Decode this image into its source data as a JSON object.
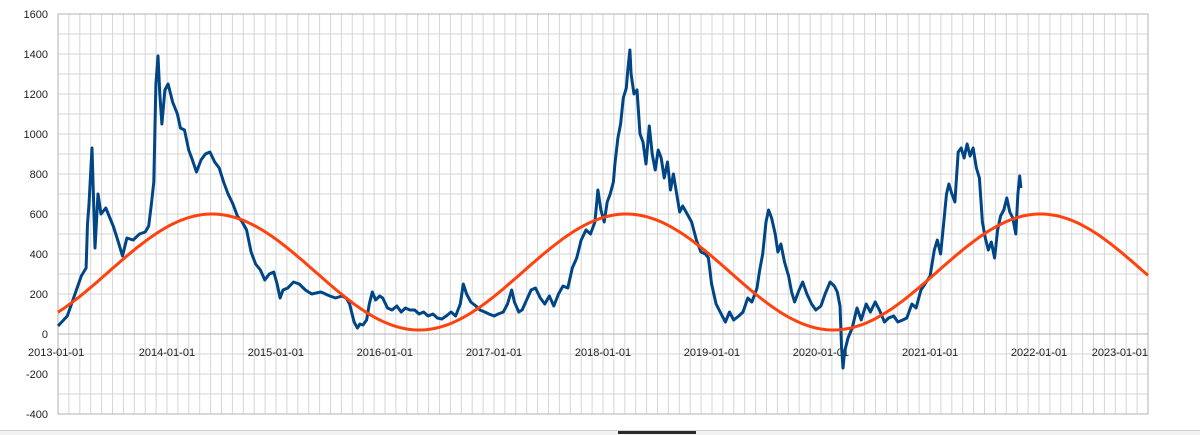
{
  "chart_data": {
    "type": "line",
    "title": "",
    "xlabel": "",
    "ylabel": "",
    "xlim": [
      "2013-01-01",
      "2023-01-01"
    ],
    "ylim": [
      -400,
      1600
    ],
    "x_ticks": [
      "2013-01-01",
      "2014-01-01",
      "2015-01-01",
      "2016-01-01",
      "2017-01-01",
      "2018-01-01",
      "2019-01-01",
      "2020-01-01",
      "2021-01-01",
      "2022-01-01",
      "2023-01-01"
    ],
    "y_ticks": [
      -400,
      -200,
      0,
      200,
      400,
      600,
      800,
      1000,
      1200,
      1400,
      1600
    ],
    "grid": true,
    "legend": "none",
    "series": [
      {
        "color": "#004586",
        "points": [
          [
            "2013-01-01",
            40
          ],
          [
            "2013-02-01",
            90
          ],
          [
            "2013-02-20",
            170
          ],
          [
            "2013-03-20",
            290
          ],
          [
            "2013-04-05",
            330
          ],
          [
            "2013-04-10",
            550
          ],
          [
            "2013-04-15",
            650
          ],
          [
            "2013-04-25",
            930
          ],
          [
            "2013-05-05",
            430
          ],
          [
            "2013-05-15",
            700
          ],
          [
            "2013-05-25",
            600
          ],
          [
            "2013-06-10",
            630
          ],
          [
            "2013-07-05",
            540
          ],
          [
            "2013-07-20",
            470
          ],
          [
            "2013-08-05",
            390
          ],
          [
            "2013-08-20",
            480
          ],
          [
            "2013-09-10",
            470
          ],
          [
            "2013-10-01",
            500
          ],
          [
            "2013-10-20",
            510
          ],
          [
            "2013-11-01",
            540
          ],
          [
            "2013-11-10",
            650
          ],
          [
            "2013-11-18",
            760
          ],
          [
            "2013-11-25",
            1250
          ],
          [
            "2013-12-02",
            1390
          ],
          [
            "2013-12-08",
            1200
          ],
          [
            "2013-12-15",
            1050
          ],
          [
            "2013-12-25",
            1220
          ],
          [
            "2014-01-05",
            1250
          ],
          [
            "2014-01-20",
            1160
          ],
          [
            "2014-02-05",
            1100
          ],
          [
            "2014-02-15",
            1030
          ],
          [
            "2014-03-01",
            1020
          ],
          [
            "2014-03-15",
            920
          ],
          [
            "2014-03-25",
            880
          ],
          [
            "2014-04-10",
            810
          ],
          [
            "2014-04-25",
            870
          ],
          [
            "2014-05-10",
            900
          ],
          [
            "2014-05-25",
            910
          ],
          [
            "2014-06-10",
            860
          ],
          [
            "2014-06-25",
            830
          ],
          [
            "2014-07-10",
            760
          ],
          [
            "2014-07-25",
            700
          ],
          [
            "2014-08-10",
            650
          ],
          [
            "2014-08-25",
            590
          ],
          [
            "2014-09-10",
            560
          ],
          [
            "2014-09-25",
            520
          ],
          [
            "2014-10-10",
            410
          ],
          [
            "2014-10-25",
            350
          ],
          [
            "2014-11-10",
            320
          ],
          [
            "2014-11-25",
            270
          ],
          [
            "2014-12-10",
            300
          ],
          [
            "2014-12-25",
            310
          ],
          [
            "2015-01-05",
            250
          ],
          [
            "2015-01-15",
            180
          ],
          [
            "2015-01-25",
            220
          ],
          [
            "2015-02-10",
            230
          ],
          [
            "2015-03-01",
            260
          ],
          [
            "2015-03-20",
            250
          ],
          [
            "2015-04-10",
            220
          ],
          [
            "2015-05-01",
            200
          ],
          [
            "2015-06-01",
            210
          ],
          [
            "2015-07-01",
            190
          ],
          [
            "2015-07-20",
            180
          ],
          [
            "2015-08-10",
            190
          ],
          [
            "2015-08-25",
            180
          ],
          [
            "2015-09-05",
            150
          ],
          [
            "2015-09-20",
            60
          ],
          [
            "2015-10-01",
            30
          ],
          [
            "2015-10-10",
            50
          ],
          [
            "2015-10-20",
            45
          ],
          [
            "2015-11-01",
            70
          ],
          [
            "2015-11-10",
            150
          ],
          [
            "2015-11-20",
            210
          ],
          [
            "2015-12-01",
            170
          ],
          [
            "2015-12-15",
            190
          ],
          [
            "2015-12-25",
            180
          ],
          [
            "2016-01-10",
            130
          ],
          [
            "2016-01-25",
            120
          ],
          [
            "2016-02-10",
            140
          ],
          [
            "2016-02-25",
            110
          ],
          [
            "2016-03-10",
            130
          ],
          [
            "2016-03-25",
            120
          ],
          [
            "2016-04-10",
            120
          ],
          [
            "2016-04-25",
            100
          ],
          [
            "2016-05-10",
            110
          ],
          [
            "2016-05-25",
            90
          ],
          [
            "2016-06-10",
            100
          ],
          [
            "2016-06-25",
            80
          ],
          [
            "2016-07-10",
            75
          ],
          [
            "2016-07-25",
            90
          ],
          [
            "2016-08-10",
            110
          ],
          [
            "2016-08-25",
            90
          ],
          [
            "2016-09-10",
            150
          ],
          [
            "2016-09-20",
            250
          ],
          [
            "2016-10-01",
            200
          ],
          [
            "2016-10-15",
            160
          ],
          [
            "2016-11-01",
            140
          ],
          [
            "2016-11-15",
            120
          ],
          [
            "2016-12-01",
            110
          ],
          [
            "2016-12-15",
            100
          ],
          [
            "2017-01-01",
            90
          ],
          [
            "2017-01-15",
            100
          ],
          [
            "2017-02-01",
            110
          ],
          [
            "2017-02-15",
            150
          ],
          [
            "2017-03-01",
            220
          ],
          [
            "2017-03-10",
            160
          ],
          [
            "2017-03-25",
            110
          ],
          [
            "2017-04-05",
            120
          ],
          [
            "2017-04-20",
            170
          ],
          [
            "2017-05-05",
            220
          ],
          [
            "2017-05-20",
            230
          ],
          [
            "2017-06-05",
            180
          ],
          [
            "2017-06-20",
            150
          ],
          [
            "2017-07-05",
            190
          ],
          [
            "2017-07-20",
            140
          ],
          [
            "2017-08-05",
            200
          ],
          [
            "2017-08-20",
            240
          ],
          [
            "2017-09-05",
            230
          ],
          [
            "2017-09-20",
            330
          ],
          [
            "2017-10-05",
            380
          ],
          [
            "2017-10-20",
            470
          ],
          [
            "2017-11-05",
            520
          ],
          [
            "2017-11-20",
            500
          ],
          [
            "2017-12-05",
            560
          ],
          [
            "2017-12-15",
            720
          ],
          [
            "2017-12-25",
            620
          ],
          [
            "2018-01-05",
            560
          ],
          [
            "2018-01-15",
            660
          ],
          [
            "2018-01-25",
            700
          ],
          [
            "2018-02-05",
            760
          ],
          [
            "2018-02-10",
            850
          ],
          [
            "2018-02-20",
            980
          ],
          [
            "2018-03-01",
            1050
          ],
          [
            "2018-03-10",
            1180
          ],
          [
            "2018-03-20",
            1230
          ],
          [
            "2018-03-25",
            1320
          ],
          [
            "2018-04-01",
            1420
          ],
          [
            "2018-04-05",
            1300
          ],
          [
            "2018-04-15",
            1200
          ],
          [
            "2018-04-25",
            1220
          ],
          [
            "2018-05-05",
            1000
          ],
          [
            "2018-05-15",
            960
          ],
          [
            "2018-05-25",
            850
          ],
          [
            "2018-06-05",
            1040
          ],
          [
            "2018-06-15",
            900
          ],
          [
            "2018-06-25",
            820
          ],
          [
            "2018-07-05",
            920
          ],
          [
            "2018-07-15",
            880
          ],
          [
            "2018-07-25",
            780
          ],
          [
            "2018-08-05",
            860
          ],
          [
            "2018-08-15",
            720
          ],
          [
            "2018-08-25",
            800
          ],
          [
            "2018-09-05",
            700
          ],
          [
            "2018-09-15",
            610
          ],
          [
            "2018-09-25",
            640
          ],
          [
            "2018-10-10",
            600
          ],
          [
            "2018-10-25",
            560
          ],
          [
            "2018-11-10",
            470
          ],
          [
            "2018-11-25",
            410
          ],
          [
            "2018-12-10",
            400
          ],
          [
            "2018-12-20",
            380
          ],
          [
            "2018-12-31",
            250
          ],
          [
            "2019-01-15",
            150
          ],
          [
            "2019-02-01",
            100
          ],
          [
            "2019-02-15",
            60
          ],
          [
            "2019-03-01",
            110
          ],
          [
            "2019-03-15",
            70
          ],
          [
            "2019-04-01",
            90
          ],
          [
            "2019-04-15",
            110
          ],
          [
            "2019-05-01",
            180
          ],
          [
            "2019-05-15",
            160
          ],
          [
            "2019-06-01",
            230
          ],
          [
            "2019-06-10",
            320
          ],
          [
            "2019-06-20",
            400
          ],
          [
            "2019-07-01",
            560
          ],
          [
            "2019-07-10",
            620
          ],
          [
            "2019-07-20",
            580
          ],
          [
            "2019-08-01",
            500
          ],
          [
            "2019-08-10",
            410
          ],
          [
            "2019-08-20",
            450
          ],
          [
            "2019-09-01",
            360
          ],
          [
            "2019-09-15",
            290
          ],
          [
            "2019-09-25",
            210
          ],
          [
            "2019-10-05",
            160
          ],
          [
            "2019-10-20",
            220
          ],
          [
            "2019-11-01",
            260
          ],
          [
            "2019-11-15",
            200
          ],
          [
            "2019-12-01",
            150
          ],
          [
            "2019-12-15",
            120
          ],
          [
            "2020-01-01",
            140
          ],
          [
            "2020-01-15",
            200
          ],
          [
            "2020-02-01",
            260
          ],
          [
            "2020-02-15",
            240
          ],
          [
            "2020-02-25",
            210
          ],
          [
            "2020-03-05",
            140
          ],
          [
            "2020-03-10",
            -60
          ],
          [
            "2020-03-15",
            -170
          ],
          [
            "2020-03-20",
            -90
          ],
          [
            "2020-04-01",
            -20
          ],
          [
            "2020-04-15",
            30
          ],
          [
            "2020-05-01",
            130
          ],
          [
            "2020-05-15",
            70
          ],
          [
            "2020-06-01",
            150
          ],
          [
            "2020-06-15",
            110
          ],
          [
            "2020-07-01",
            160
          ],
          [
            "2020-07-15",
            120
          ],
          [
            "2020-08-01",
            60
          ],
          [
            "2020-08-15",
            80
          ],
          [
            "2020-09-01",
            90
          ],
          [
            "2020-09-15",
            60
          ],
          [
            "2020-10-01",
            70
          ],
          [
            "2020-10-15",
            80
          ],
          [
            "2020-11-01",
            150
          ],
          [
            "2020-11-15",
            130
          ],
          [
            "2020-12-01",
            220
          ],
          [
            "2020-12-15",
            250
          ],
          [
            "2021-01-01",
            290
          ],
          [
            "2021-01-15",
            420
          ],
          [
            "2021-01-25",
            470
          ],
          [
            "2021-02-05",
            400
          ],
          [
            "2021-02-15",
            550
          ],
          [
            "2021-02-25",
            700
          ],
          [
            "2021-03-05",
            750
          ],
          [
            "2021-03-15",
            700
          ],
          [
            "2021-03-25",
            660
          ],
          [
            "2021-04-05",
            910
          ],
          [
            "2021-04-15",
            930
          ],
          [
            "2021-04-25",
            880
          ],
          [
            "2021-05-05",
            950
          ],
          [
            "2021-05-15",
            890
          ],
          [
            "2021-05-25",
            930
          ],
          [
            "2021-06-05",
            830
          ],
          [
            "2021-06-15",
            780
          ],
          [
            "2021-06-25",
            560
          ],
          [
            "2021-07-05",
            480
          ],
          [
            "2021-07-15",
            420
          ],
          [
            "2021-07-25",
            460
          ],
          [
            "2021-08-05",
            380
          ],
          [
            "2021-08-15",
            520
          ],
          [
            "2021-08-25",
            590
          ],
          [
            "2021-09-05",
            620
          ],
          [
            "2021-09-15",
            680
          ],
          [
            "2021-09-25",
            610
          ],
          [
            "2021-10-05",
            580
          ],
          [
            "2021-10-15",
            500
          ],
          [
            "2021-10-22",
            700
          ],
          [
            "2021-10-28",
            790
          ],
          [
            "2021-11-01",
            730
          ]
        ]
      },
      {
        "color": "#ff420e",
        "curve": "periodic",
        "mean": 310,
        "amplitude": 290,
        "period_years": 3.8,
        "peak_dates": [
          "2014-06-01",
          "2018-03-15",
          "2022-01-01"
        ],
        "points_start": "2013-01-01",
        "points_end": "2023-01-01"
      }
    ]
  },
  "colors": {
    "grid": "#d6d6d6",
    "frame": "#b3b3b3",
    "series_1": "#004586",
    "series_2": "#ff420e"
  }
}
